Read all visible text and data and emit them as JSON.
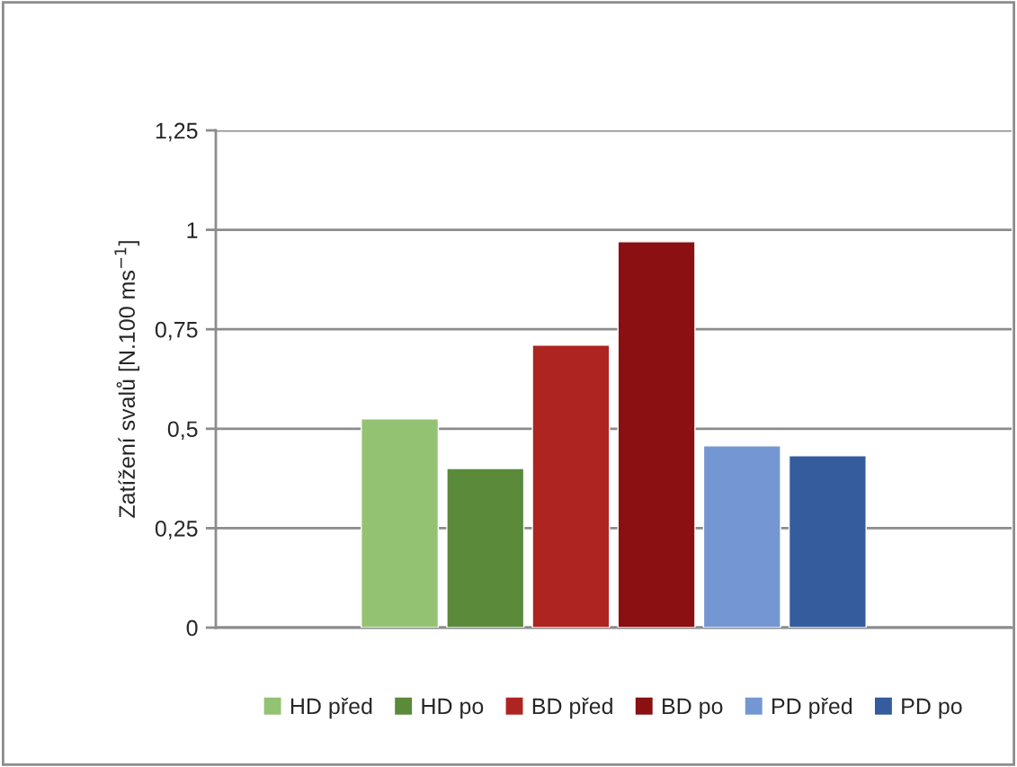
{
  "chart_data": {
    "type": "bar",
    "ylabel": "Zatížení svalů [N.100 ms$^{−1}$]",
    "categories": [
      null
    ],
    "series": [
      {
        "name": "HD před",
        "color": "#93c273",
        "values": [
          0.525
        ]
      },
      {
        "name": "HD po",
        "color": "#5a8a3a",
        "values": [
          0.4
        ]
      },
      {
        "name": "BD před",
        "color": "#ae2420",
        "values": [
          0.71
        ]
      },
      {
        "name": "BD po",
        "color": "#8a1012",
        "values": [
          0.97
        ]
      },
      {
        "name": "PD před",
        "color": "#7497d3",
        "values": [
          0.457
        ]
      },
      {
        "name": "PD po",
        "color": "#355c9c",
        "values": [
          0.432
        ]
      }
    ],
    "ylim": [
      0,
      1.25
    ],
    "yticks": [
      {
        "value": 0,
        "label": "0"
      },
      {
        "value": 0.25,
        "label": "0,25"
      },
      {
        "value": 0.5,
        "label": "0,5"
      },
      {
        "value": 0.75,
        "label": "0,75"
      },
      {
        "value": 1,
        "label": "1"
      },
      {
        "value": 1.25,
        "label": "1,25"
      }
    ],
    "grid": "y",
    "legend": "bottom"
  }
}
